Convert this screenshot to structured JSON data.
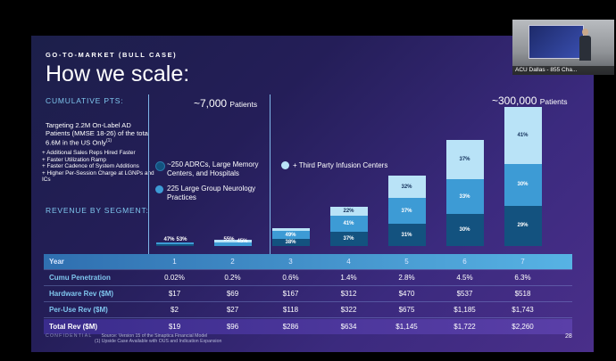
{
  "video": {
    "caption": "ACU Dallas - 855 Cha..."
  },
  "slide": {
    "eyebrow": "GO-TO-MARKET (BULL CASE)",
    "title": "How we scale:",
    "cumulative_label": "CUMULATIVE PTS:",
    "revenue_label": "REVENUE BY SEGMENT:",
    "target_text": "Targeting 2.2M On-Label AD Patients (MMSE 18-26) of the total 6.6M in the US Only",
    "target_footnote": "(1)",
    "bullets": [
      "+ Additional Sales Reps Hired Faster",
      "+ Faster Utilization Ramp",
      "+ Faster Cadence of System Additions",
      "+ Higher Per-Session Charge at LGNPs and ICs"
    ],
    "ann_7000": {
      "value": "~7,000",
      "unit": "Patients"
    },
    "ann_300000": {
      "value": "~300,000",
      "unit": "Patients"
    },
    "legend": [
      {
        "label": "~250 ADRCs, Large Memory Centers, and Hospitals",
        "color": "#13527f"
      },
      {
        "label": "225 Large Group Neurology Practices",
        "color": "#3d9bd5"
      },
      {
        "label": "+ Third Party Infusion Centers",
        "color": "#b9e3f7"
      }
    ],
    "page": "28",
    "confidential": "CONFIDENTIAL",
    "source": "Source: Version 15 of the Sinaptica Financial Model",
    "footnote": "(1)   Upside Case Available with OUS and Indication Expansion"
  },
  "chart_data": {
    "type": "bar",
    "stacked": true,
    "categories": [
      "1",
      "2",
      "3",
      "4",
      "5",
      "6",
      "7"
    ],
    "series": [
      {
        "color": "#13527f",
        "segment_labels": [
          "47%",
          "",
          "38%",
          "37%",
          "31%",
          "30%",
          "29%"
        ]
      },
      {
        "color": "#3d9bd5",
        "segment_labels": [
          "53%",
          "55%",
          "49%",
          "41%",
          "37%",
          "33%",
          "30%"
        ]
      },
      {
        "color": "#b9e3f7",
        "segment_labels": [
          "",
          "45%",
          "13%",
          "22%",
          "32%",
          "37%",
          "41%"
        ]
      }
    ],
    "shares": [
      [
        0.47,
        0.53,
        0.0
      ],
      [
        0.0,
        0.55,
        0.45
      ],
      [
        0.38,
        0.49,
        0.13
      ],
      [
        0.37,
        0.41,
        0.22
      ],
      [
        0.31,
        0.37,
        0.32
      ],
      [
        0.3,
        0.33,
        0.37
      ],
      [
        0.29,
        0.3,
        0.41
      ]
    ],
    "totals": [
      19,
      96,
      286,
      634,
      1145,
      1722,
      2260
    ]
  },
  "table": {
    "rows": [
      {
        "label": "Year",
        "cells": [
          "1",
          "2",
          "3",
          "4",
          "5",
          "6",
          "7"
        ]
      },
      {
        "label": "Cumu Penetration",
        "cells": [
          "0.02%",
          "0.2%",
          "0.6%",
          "1.4%",
          "2.8%",
          "4.5%",
          "6.3%"
        ]
      },
      {
        "label": "Hardware Rev ($M)",
        "cells": [
          "$17",
          "$69",
          "$167",
          "$312",
          "$470",
          "$537",
          "$518"
        ]
      },
      {
        "label": "Per-Use Rev ($M)",
        "cells": [
          "$2",
          "$27",
          "$118",
          "$322",
          "$675",
          "$1,185",
          "$1,743"
        ]
      },
      {
        "label": "Total Rev ($M)",
        "cells": [
          "$19",
          "$96",
          "$286",
          "$634",
          "$1,145",
          "$1,722",
          "$2,260"
        ]
      }
    ]
  }
}
